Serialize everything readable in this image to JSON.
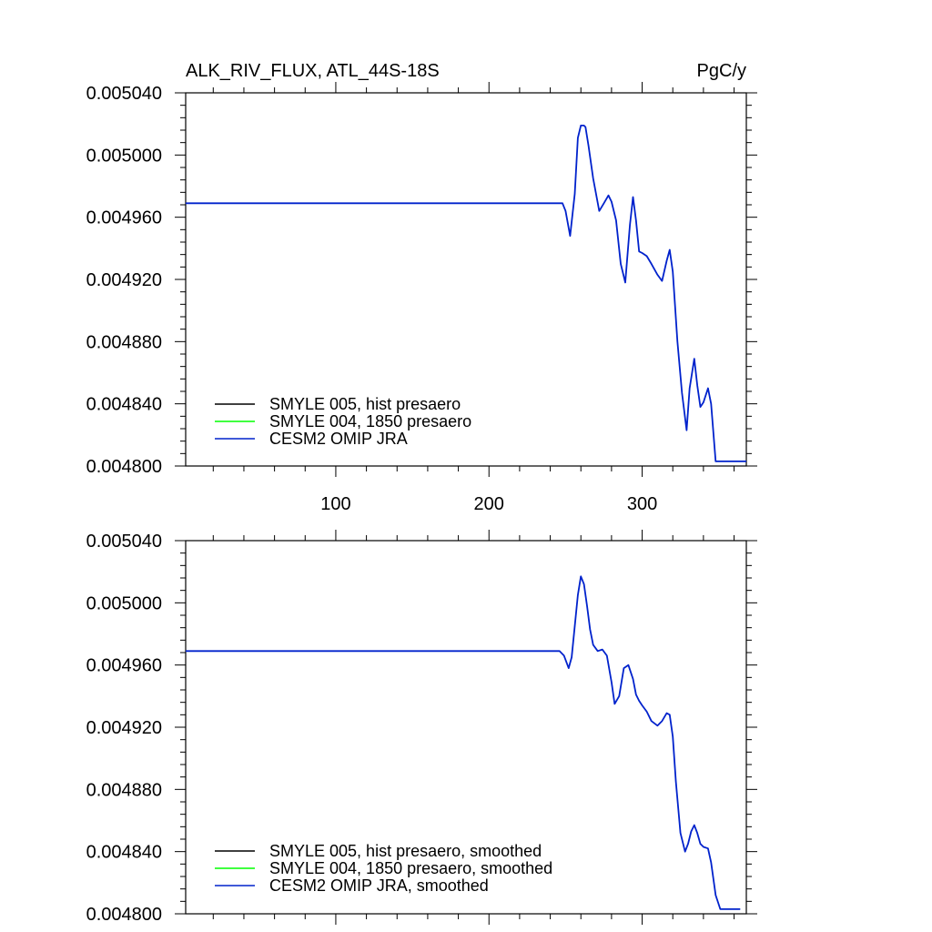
{
  "figure": {
    "title_left": "ALK_RIV_FLUX, ATL_44S-18S",
    "title_right": "PgC/y"
  },
  "chart_data": [
    {
      "type": "line",
      "title": "ALK_RIV_FLUX, ATL_44S-18S",
      "units": "PgC/y",
      "xlim": [
        2,
        368
      ],
      "ylim": [
        0.0048,
        0.00504
      ],
      "xticks": [
        100,
        200,
        300
      ],
      "xtick_labels": [
        "100",
        "200",
        "300"
      ],
      "yticks": [
        0.0048,
        0.00484,
        0.00488,
        0.00492,
        0.00496,
        0.005,
        0.00504
      ],
      "ytick_labels": [
        "0.004800",
        "0.004840",
        "0.004880",
        "0.004920",
        "0.004960",
        "0.005000",
        "0.005040"
      ],
      "legend": {
        "position": "bottom-left",
        "entries": [
          {
            "label": "SMYLE 005, hist presaero",
            "color": "#000000"
          },
          {
            "label": "SMYLE 004, 1850 presaero",
            "color": "#00ff00"
          },
          {
            "label": "CESM2 OMIP JRA",
            "color": "#0022cc"
          }
        ]
      },
      "series": [
        {
          "color": "#0022cc",
          "x": [
            2,
            248,
            250,
            253,
            256,
            258,
            260,
            262,
            263,
            265,
            268,
            272,
            275,
            278,
            280,
            283,
            286,
            289,
            292,
            294,
            296,
            298,
            300,
            303,
            306,
            310,
            313,
            316,
            318,
            320,
            323,
            326,
            329,
            331,
            334,
            336,
            338,
            340,
            343,
            345,
            348,
            351,
            368
          ],
          "y": [
            0.004969,
            0.004969,
            0.004964,
            0.004948,
            0.004975,
            0.005011,
            0.005019,
            0.005019,
            0.005018,
            0.005006,
            0.004985,
            0.004964,
            0.004969,
            0.004974,
            0.00497,
            0.004958,
            0.00493,
            0.004918,
            0.004955,
            0.004973,
            0.004958,
            0.004938,
            0.004937,
            0.004935,
            0.00493,
            0.004923,
            0.004919,
            0.004932,
            0.004939,
            0.004925,
            0.00488,
            0.004847,
            0.004823,
            0.00485,
            0.004869,
            0.004852,
            0.004838,
            0.004841,
            0.00485,
            0.00484,
            0.004803,
            0.004803,
            0.004803
          ]
        }
      ]
    },
    {
      "type": "line",
      "xlim": [
        2,
        368
      ],
      "ylim": [
        0.0048,
        0.00504
      ],
      "xticks": [
        100,
        200,
        300
      ],
      "yticks": [
        0.0048,
        0.00484,
        0.00488,
        0.00492,
        0.00496,
        0.005,
        0.00504
      ],
      "ytick_labels": [
        "0.004800",
        "0.004840",
        "0.004880",
        "0.004920",
        "0.004960",
        "0.005000",
        "0.005040"
      ],
      "legend": {
        "position": "bottom-left",
        "entries": [
          {
            "label": "SMYLE 005, hist presaero, smoothed",
            "color": "#000000"
          },
          {
            "label": "SMYLE 004, 1850 presaero, smoothed",
            "color": "#00ff00"
          },
          {
            "label": "CESM2 OMIP JRA, smoothed",
            "color": "#0022cc"
          }
        ]
      },
      "series": [
        {
          "color": "#0022cc",
          "x": [
            2,
            246,
            249,
            252,
            254,
            256,
            258,
            260,
            262,
            264,
            266,
            268,
            271,
            274,
            277,
            280,
            282,
            285,
            288,
            291,
            294,
            296,
            298,
            300,
            303,
            306,
            310,
            313,
            316,
            318,
            320,
            322,
            325,
            328,
            330,
            332,
            334,
            336,
            338,
            340,
            343,
            345,
            348,
            351,
            356,
            364
          ],
          "y": [
            0.004969,
            0.004969,
            0.004966,
            0.004958,
            0.004965,
            0.004985,
            0.005005,
            0.005017,
            0.005012,
            0.004998,
            0.004983,
            0.004973,
            0.004969,
            0.00497,
            0.004966,
            0.004949,
            0.004935,
            0.00494,
            0.004958,
            0.00496,
            0.004951,
            0.004941,
            0.004937,
            0.004934,
            0.00493,
            0.004924,
            0.004921,
            0.004924,
            0.004929,
            0.004928,
            0.004914,
            0.004885,
            0.004852,
            0.00484,
            0.004845,
            0.004853,
            0.004857,
            0.004852,
            0.004845,
            0.004843,
            0.004842,
            0.004833,
            0.004812,
            0.004803,
            0.004803,
            0.004803
          ]
        }
      ]
    }
  ]
}
